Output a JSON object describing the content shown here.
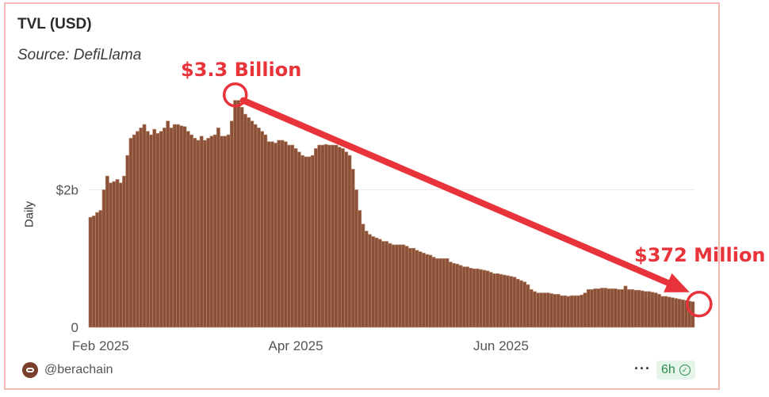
{
  "header": {
    "title": "TVL (USD)",
    "source": "Source: DefiLlama"
  },
  "footer": {
    "handle": "@berachain",
    "more": "···",
    "badge": "6h"
  },
  "colors": {
    "bar": "#8b5038",
    "bar_edge": "#b98a6e",
    "annotation": "#e8333a"
  },
  "annotations": {
    "peak_label": "$3.3 Billion",
    "end_label": "$372 Million",
    "arrow": {
      "from_value": 3.3,
      "to_value": 0.372
    }
  },
  "chart_data": {
    "type": "bar",
    "ylabel": "Daily",
    "ylim": [
      0,
      3.55
    ],
    "y_unit": "USD billions",
    "y_ticks": [
      {
        "value": 0,
        "label": "0"
      },
      {
        "value": 2,
        "label": "$2b"
      }
    ],
    "x_ticks": [
      {
        "index": 3,
        "label": "Feb 2025"
      },
      {
        "index": 61,
        "label": "Apr 2025"
      },
      {
        "index": 122,
        "label": "Jun 2025"
      }
    ],
    "grid": "horizontal-at-ticks",
    "series": [
      {
        "values": [
          1.6,
          1.62,
          1.67,
          1.7,
          2.0,
          2.2,
          2.1,
          2.12,
          2.15,
          2.1,
          2.2,
          2.5,
          2.75,
          2.8,
          2.85,
          2.9,
          2.95,
          2.85,
          2.8,
          2.88,
          2.82,
          2.85,
          2.9,
          3.0,
          2.9,
          2.95,
          2.95,
          2.93,
          2.92,
          2.85,
          2.8,
          2.75,
          2.72,
          2.78,
          2.72,
          2.75,
          2.78,
          2.8,
          2.9,
          2.78,
          2.78,
          2.8,
          3.0,
          3.3,
          3.3,
          3.2,
          3.1,
          3.05,
          3.0,
          2.95,
          2.9,
          2.85,
          2.8,
          2.7,
          2.7,
          2.68,
          2.72,
          2.72,
          2.7,
          2.65,
          2.65,
          2.6,
          2.55,
          2.5,
          2.48,
          2.48,
          2.5,
          2.6,
          2.65,
          2.65,
          2.66,
          2.65,
          2.65,
          2.65,
          2.62,
          2.6,
          2.55,
          2.5,
          2.3,
          2.0,
          1.7,
          1.5,
          1.4,
          1.35,
          1.32,
          1.3,
          1.28,
          1.25,
          1.25,
          1.22,
          1.2,
          1.2,
          1.2,
          1.2,
          1.18,
          1.15,
          1.15,
          1.12,
          1.1,
          1.08,
          1.06,
          1.05,
          1.02,
          1.0,
          1.0,
          1.0,
          1.0,
          0.95,
          0.93,
          0.92,
          0.9,
          0.88,
          0.88,
          0.86,
          0.85,
          0.85,
          0.84,
          0.83,
          0.82,
          0.8,
          0.78,
          0.78,
          0.77,
          0.76,
          0.75,
          0.74,
          0.73,
          0.7,
          0.68,
          0.66,
          0.62,
          0.55,
          0.52,
          0.5,
          0.5,
          0.5,
          0.5,
          0.49,
          0.48,
          0.48,
          0.46,
          0.46,
          0.45,
          0.46,
          0.46,
          0.46,
          0.47,
          0.5,
          0.55,
          0.55,
          0.56,
          0.56,
          0.57,
          0.57,
          0.56,
          0.56,
          0.56,
          0.55,
          0.55,
          0.6,
          0.55,
          0.55,
          0.54,
          0.54,
          0.53,
          0.52,
          0.52,
          0.51,
          0.5,
          0.48,
          0.45,
          0.45,
          0.44,
          0.43,
          0.42,
          0.41,
          0.4,
          0.39,
          0.38,
          0.372
        ]
      }
    ]
  }
}
